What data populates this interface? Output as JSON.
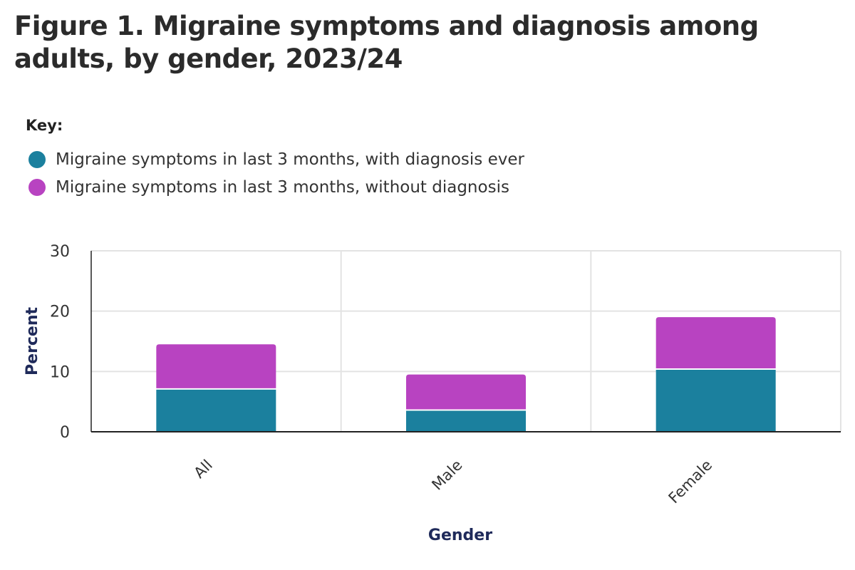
{
  "title": "Figure 1. Migraine symptoms and diagnosis among adults, by gender, 2023/24",
  "legend_title": "Key:",
  "chart_data": {
    "type": "bar",
    "stacked": true,
    "title": "Figure 1. Migraine symptoms and diagnosis among adults, by gender, 2023/24",
    "xlabel": "Gender",
    "ylabel": "Percent",
    "ylim": [
      0,
      30
    ],
    "yticks": [
      0,
      10,
      20,
      30
    ],
    "grid": true,
    "legend_position": "top-left",
    "categories": [
      "All",
      "Male",
      "Female"
    ],
    "series": [
      {
        "name": "Migraine symptoms in last 3 months, with diagnosis ever",
        "color": "#1b809e",
        "values": [
          7.1,
          3.6,
          10.4
        ]
      },
      {
        "name": "Migraine symptoms in last 3 months, without diagnosis",
        "color": "#b843c1",
        "values": [
          7.4,
          5.9,
          8.6
        ]
      }
    ]
  }
}
